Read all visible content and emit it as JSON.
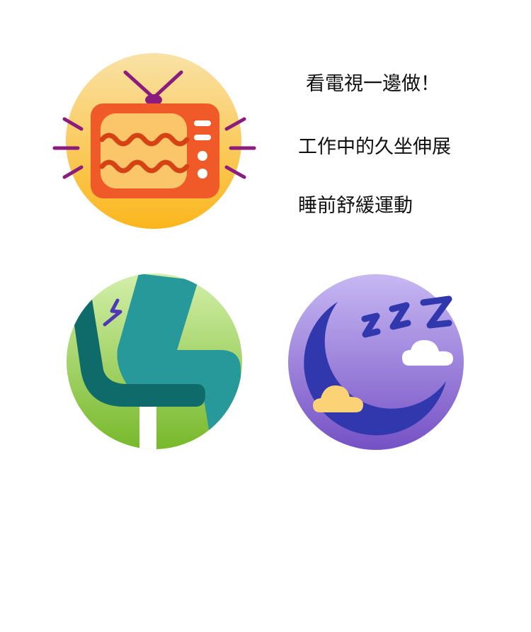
{
  "labels": {
    "tv": "看電視一邊做！",
    "sit": "工作中的久坐伸展",
    "sleep": "睡前舒緩運動"
  },
  "icons": {
    "tv": "retro-tv-icon",
    "chair": "office-chair-icon",
    "moon": "sleeping-moon-icon"
  },
  "colors": {
    "tv_circle_top": "#f9dd9a",
    "tv_circle_bottom": "#fbb922",
    "tv_body": "#f05a28",
    "tv_screen": "#fbc56a",
    "tv_wave": "#d64213",
    "purple_accent": "#8b1b7c",
    "chair_circle_top": "#cdeca4",
    "chair_circle_bottom": "#7bbd2f",
    "chair_teal": "#28999a",
    "chair_dark_teal": "#0f6b69",
    "moon_circle_top": "#c6b7f2",
    "moon_circle_bottom": "#7652c4",
    "moon_blue": "#3138ae",
    "cloud_yellow": "#fbd275"
  }
}
